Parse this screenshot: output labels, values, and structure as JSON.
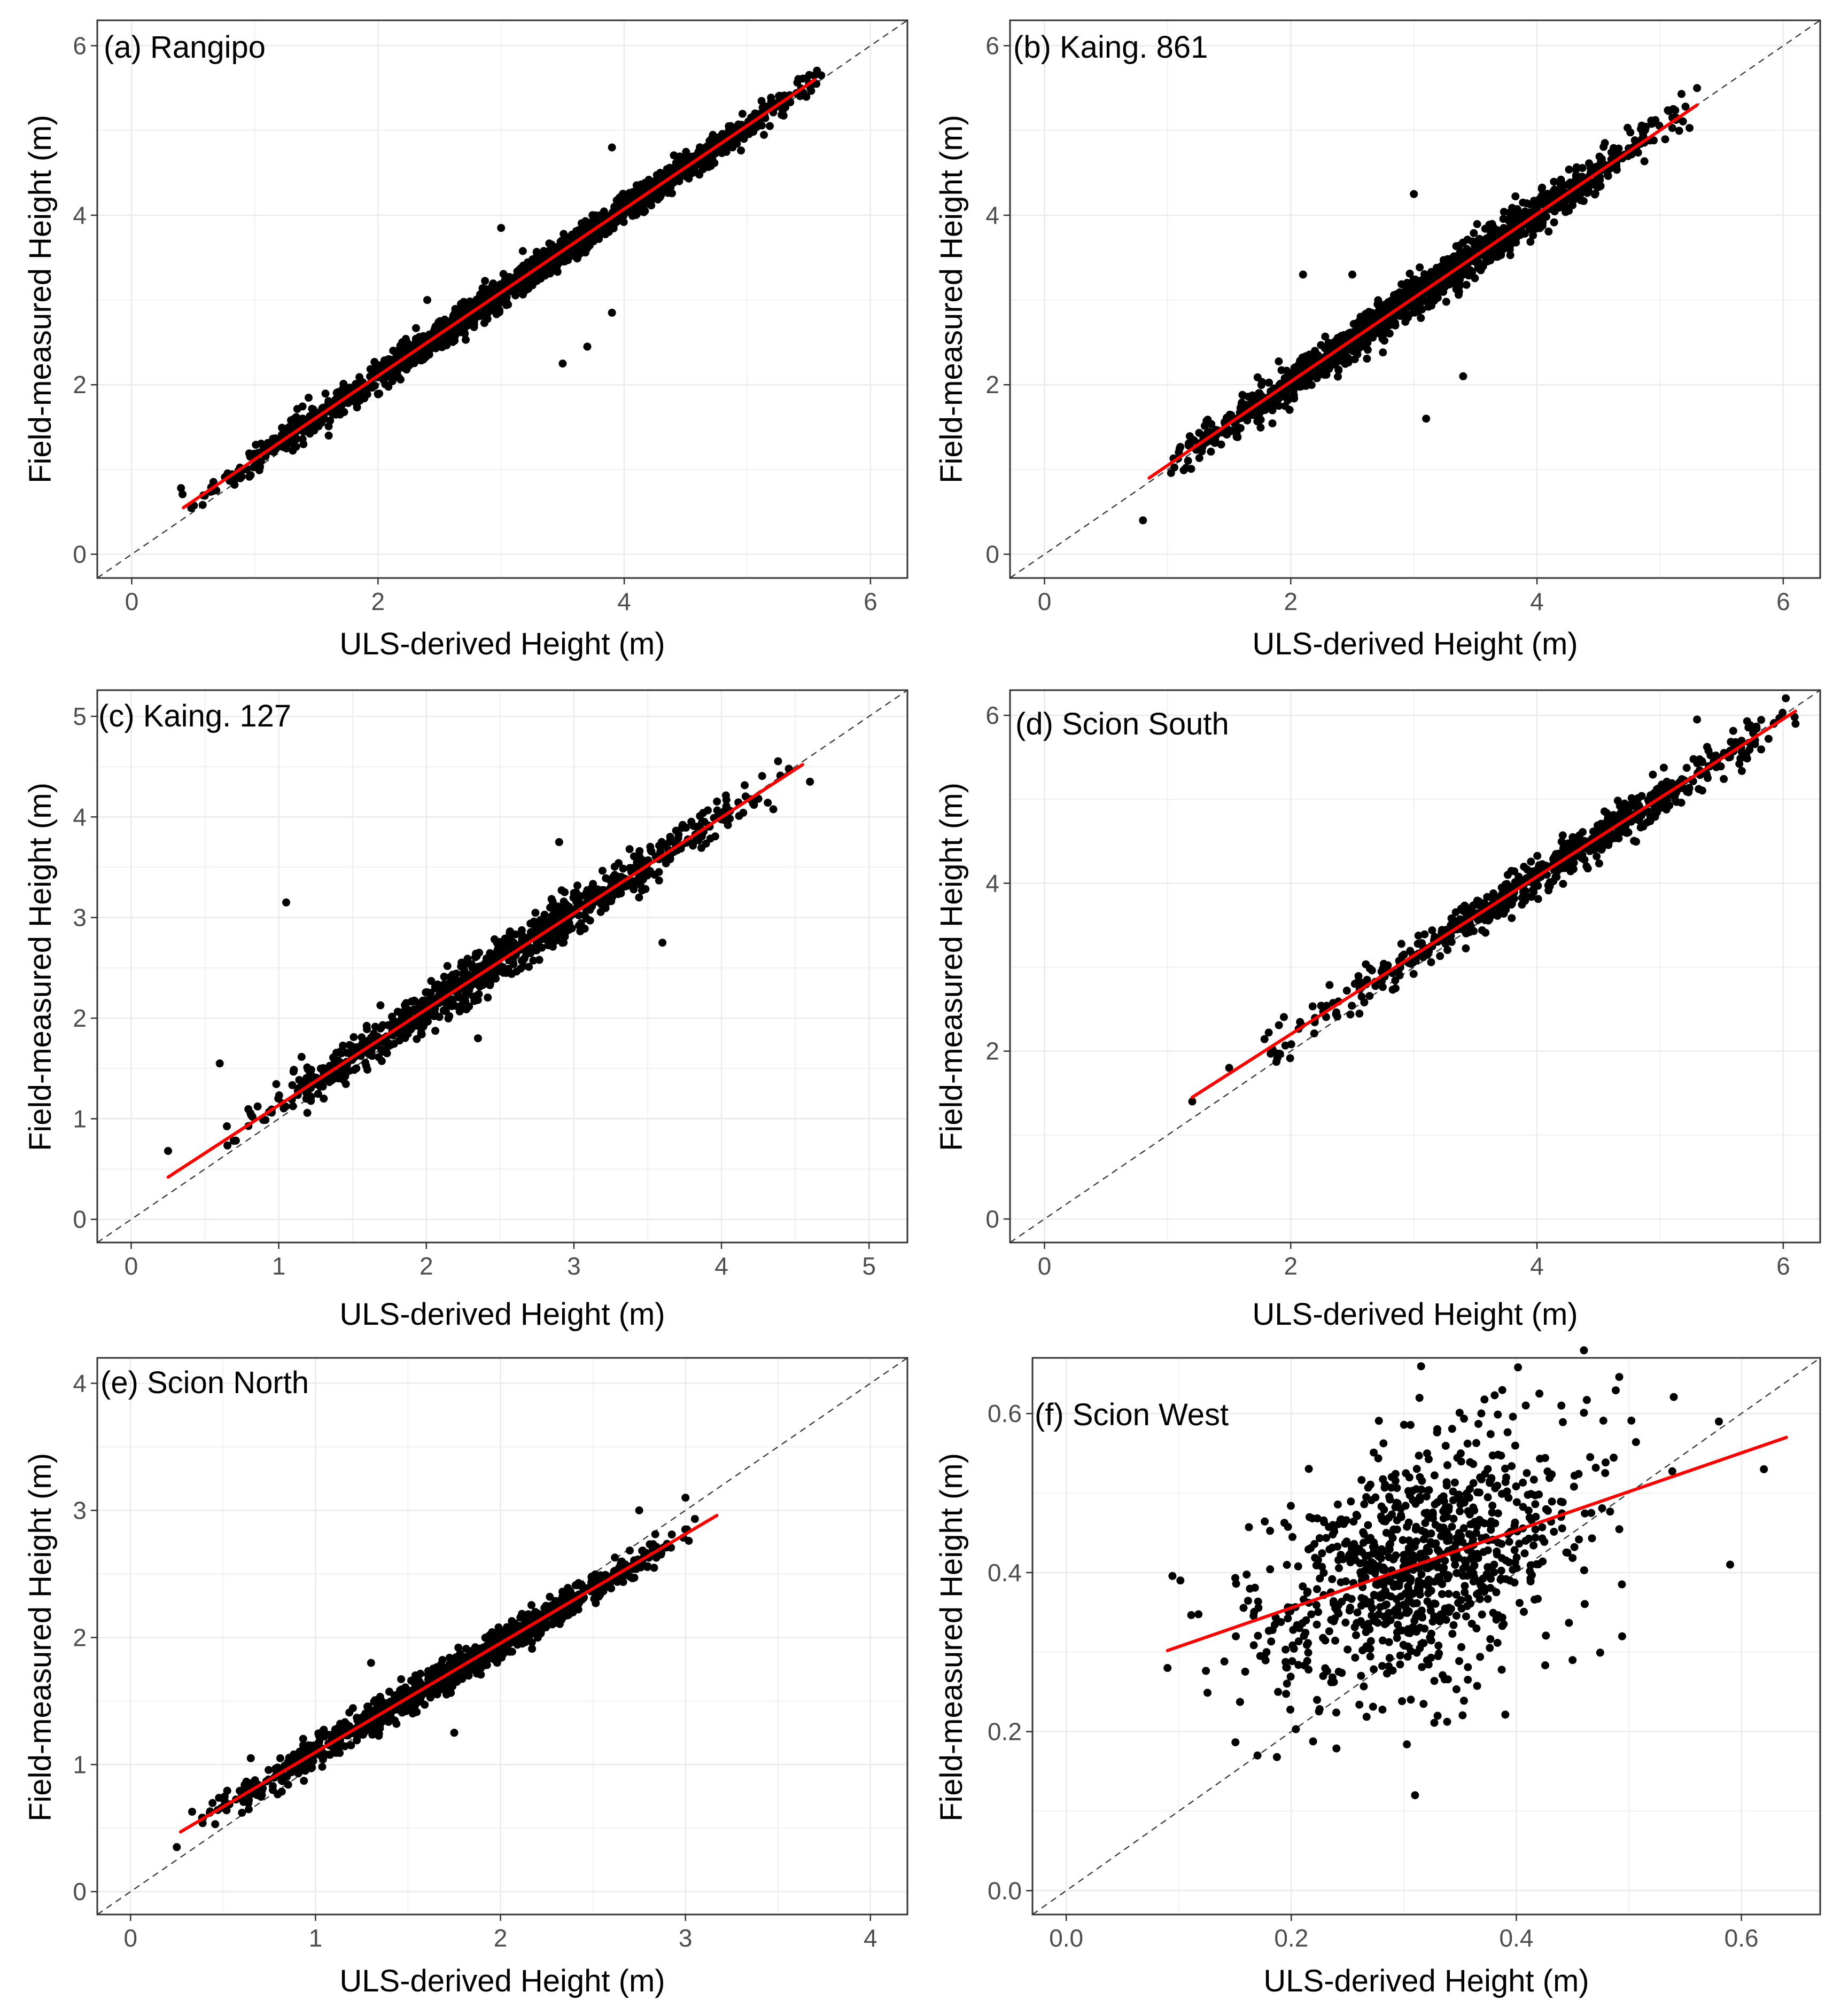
{
  "figure": {
    "panel_count": 6
  },
  "style": {
    "point_color": "#000000",
    "fit_color": "#ff0000",
    "identity_line_color": "#333333",
    "grid_color": "#ebebeb",
    "panel_border_color": "#333333",
    "tick_text_color": "#4d4d4d"
  },
  "chart_data": [
    {
      "type": "scatter",
      "panel_label": "(a) Rangipo",
      "xlabel": "ULS-derived Height (m)",
      "ylabel": "Field-measured Height (m)",
      "xlim": [
        -0.28,
        6.3
      ],
      "ylim": [
        -0.28,
        6.3
      ],
      "xticks": [
        0,
        2,
        4,
        6
      ],
      "yticks": [
        0,
        2,
        4,
        6
      ],
      "tick_labels_x": [
        "0",
        "2",
        "4",
        "6"
      ],
      "tick_labels_y": [
        "0",
        "2",
        "4",
        "6"
      ],
      "grid": true,
      "identity_line": true,
      "fit_line": {
        "x": [
          0.42,
          5.55
        ],
        "y": [
          0.55,
          5.6
        ]
      },
      "cloud": {
        "n": 1800,
        "seed": 11,
        "xmin": 0.4,
        "xmax": 5.6,
        "mode": 3.4,
        "sd": 0.085,
        "intercept": 0.13,
        "slope": 0.985
      },
      "points": [
        {
          "x": 3.0,
          "y": 3.85
        },
        {
          "x": 3.5,
          "y": 2.25
        },
        {
          "x": 3.7,
          "y": 2.45
        },
        {
          "x": 3.9,
          "y": 2.85
        },
        {
          "x": 2.4,
          "y": 3.0
        },
        {
          "x": 3.9,
          "y": 4.8
        },
        {
          "x": 0.4,
          "y": 0.78
        },
        {
          "x": 5.6,
          "y": 5.65
        },
        {
          "x": 1.6,
          "y": 1.4
        }
      ]
    },
    {
      "type": "scatter",
      "panel_label": "(b) Kaing. 861",
      "xlabel": "ULS-derived Height (m)",
      "ylabel": "Field-measured Height (m)",
      "xlim": [
        -0.28,
        6.3
      ],
      "ylim": [
        -0.28,
        6.3
      ],
      "xticks": [
        0,
        2,
        4,
        6
      ],
      "yticks": [
        0,
        2,
        4,
        6
      ],
      "tick_labels_x": [
        "0",
        "2",
        "4",
        "6"
      ],
      "tick_labels_y": [
        "0",
        "2",
        "4",
        "6"
      ],
      "grid": true,
      "identity_line": true,
      "fit_line": {
        "x": [
          0.85,
          5.3
        ],
        "y": [
          0.9,
          5.3
        ]
      },
      "cloud": {
        "n": 1500,
        "seed": 23,
        "xmin": 0.9,
        "xmax": 5.3,
        "mode": 2.9,
        "sd": 0.11,
        "intercept": 0.06,
        "slope": 0.99
      },
      "points": [
        {
          "x": 2.1,
          "y": 3.3
        },
        {
          "x": 3.0,
          "y": 4.25
        },
        {
          "x": 3.1,
          "y": 1.6
        },
        {
          "x": 3.4,
          "y": 2.1
        },
        {
          "x": 0.8,
          "y": 0.4
        },
        {
          "x": 5.3,
          "y": 5.5
        },
        {
          "x": 2.5,
          "y": 3.3
        }
      ]
    },
    {
      "type": "scatter",
      "panel_label": "(c) Kaing. 127",
      "xlabel": "ULS-derived Height (m)",
      "ylabel": "Field-measured Height (m)",
      "xlim": [
        -0.23,
        5.26
      ],
      "ylim": [
        -0.23,
        5.26
      ],
      "xticks": [
        0,
        1,
        2,
        3,
        4,
        5
      ],
      "yticks": [
        0,
        1,
        2,
        3,
        4,
        5
      ],
      "tick_labels_x": [
        "0",
        "1",
        "2",
        "3",
        "4",
        "5"
      ],
      "tick_labels_y": [
        "0",
        "1",
        "2",
        "3",
        "4",
        "5"
      ],
      "grid": true,
      "identity_line": true,
      "fit_line": {
        "x": [
          0.25,
          4.55
        ],
        "y": [
          0.42,
          4.52
        ]
      },
      "cloud": {
        "n": 900,
        "seed": 37,
        "xmin": 0.5,
        "xmax": 4.5,
        "mode": 2.4,
        "sd": 0.11,
        "intercept": 0.18,
        "slope": 0.955
      },
      "points": [
        {
          "x": 1.05,
          "y": 3.15
        },
        {
          "x": 0.6,
          "y": 1.55
        },
        {
          "x": 0.25,
          "y": 0.68
        },
        {
          "x": 3.6,
          "y": 2.75
        },
        {
          "x": 2.9,
          "y": 3.75
        },
        {
          "x": 4.6,
          "y": 4.35
        },
        {
          "x": 2.35,
          "y": 1.8
        }
      ]
    },
    {
      "type": "scatter",
      "panel_label": "(d) Scion South",
      "xlabel": "ULS-derived Height (m)",
      "ylabel": "Field-measured Height (m)",
      "xlim": [
        -0.28,
        6.3
      ],
      "ylim": [
        -0.28,
        6.3
      ],
      "xticks": [
        0,
        2,
        4,
        6
      ],
      "yticks": [
        0,
        2,
        4,
        6
      ],
      "tick_labels_x": [
        "0",
        "2",
        "4",
        "6"
      ],
      "tick_labels_y": [
        "0",
        "2",
        "4",
        "6"
      ],
      "grid": true,
      "identity_line": true,
      "fit_line": {
        "x": [
          1.2,
          6.1
        ],
        "y": [
          1.45,
          6.05
        ]
      },
      "cloud": {
        "n": 650,
        "seed": 53,
        "xmin": 1.5,
        "xmax": 6.1,
        "mode": 4.6,
        "sd": 0.12,
        "intercept": 0.32,
        "slope": 0.94
      },
      "points": [
        {
          "x": 1.2,
          "y": 1.4
        },
        {
          "x": 5.3,
          "y": 5.95
        },
        {
          "x": 6.1,
          "y": 5.9
        },
        {
          "x": 1.5,
          "y": 1.8
        }
      ]
    },
    {
      "type": "scatter",
      "panel_label": "(e) Scion North",
      "xlabel": "ULS-derived Height (m)",
      "ylabel": "Field-measured Height (m)",
      "xlim": [
        -0.18,
        4.2
      ],
      "ylim": [
        -0.18,
        4.2
      ],
      "xticks": [
        0,
        1,
        2,
        3,
        4
      ],
      "yticks": [
        0,
        1,
        2,
        3,
        4
      ],
      "tick_labels_x": [
        "0",
        "1",
        "2",
        "3",
        "4"
      ],
      "tick_labels_y": [
        "0",
        "1",
        "2",
        "3",
        "4"
      ],
      "grid": true,
      "identity_line": true,
      "fit_line": {
        "x": [
          0.27,
          3.17
        ],
        "y": [
          0.47,
          2.96
        ]
      },
      "cloud": {
        "n": 1100,
        "seed": 71,
        "xmin": 0.3,
        "xmax": 3.1,
        "mode": 1.8,
        "sd": 0.06,
        "intercept": 0.238,
        "slope": 0.858
      },
      "points": [
        {
          "x": 1.75,
          "y": 1.25
        },
        {
          "x": 1.3,
          "y": 1.8
        },
        {
          "x": 2.75,
          "y": 3.0
        },
        {
          "x": 3.0,
          "y": 3.1
        },
        {
          "x": 0.25,
          "y": 0.35
        },
        {
          "x": 0.65,
          "y": 1.05
        }
      ]
    },
    {
      "type": "scatter",
      "panel_label": "(f) Scion West",
      "xlabel": "ULS-derived Height (m)",
      "ylabel": "Field-measured Height (m)",
      "xlim": [
        -0.03,
        0.67
      ],
      "ylim": [
        -0.03,
        0.67
      ],
      "xticks": [
        0.0,
        0.2,
        0.4,
        0.6
      ],
      "yticks": [
        0.0,
        0.2,
        0.4,
        0.6
      ],
      "tick_labels_x": [
        "0.0",
        "0.2",
        "0.4",
        "0.6"
      ],
      "tick_labels_y": [
        "0.0",
        "0.2",
        "0.4",
        "0.6"
      ],
      "grid": true,
      "identity_line": true,
      "fit_line": {
        "x": [
          0.09,
          0.64
        ],
        "y": [
          0.302,
          0.57
        ]
      },
      "cloud": {
        "n": 900,
        "seed": 97,
        "xmin": 0.09,
        "xmax": 0.64,
        "mode": 0.31,
        "sd": 0.075,
        "intercept": 0.258,
        "slope": 0.487,
        "xsd": 0.075
      },
      "points": [
        {
          "x": 0.31,
          "y": 0.12
        },
        {
          "x": 0.33,
          "y": 0.22
        },
        {
          "x": 0.17,
          "y": 0.17
        },
        {
          "x": 0.58,
          "y": 0.59
        },
        {
          "x": 0.59,
          "y": 0.41
        },
        {
          "x": 0.62,
          "y": 0.53
        },
        {
          "x": 0.09,
          "y": 0.28
        },
        {
          "x": 0.44,
          "y": 0.61
        },
        {
          "x": 0.45,
          "y": 0.29
        }
      ]
    }
  ]
}
